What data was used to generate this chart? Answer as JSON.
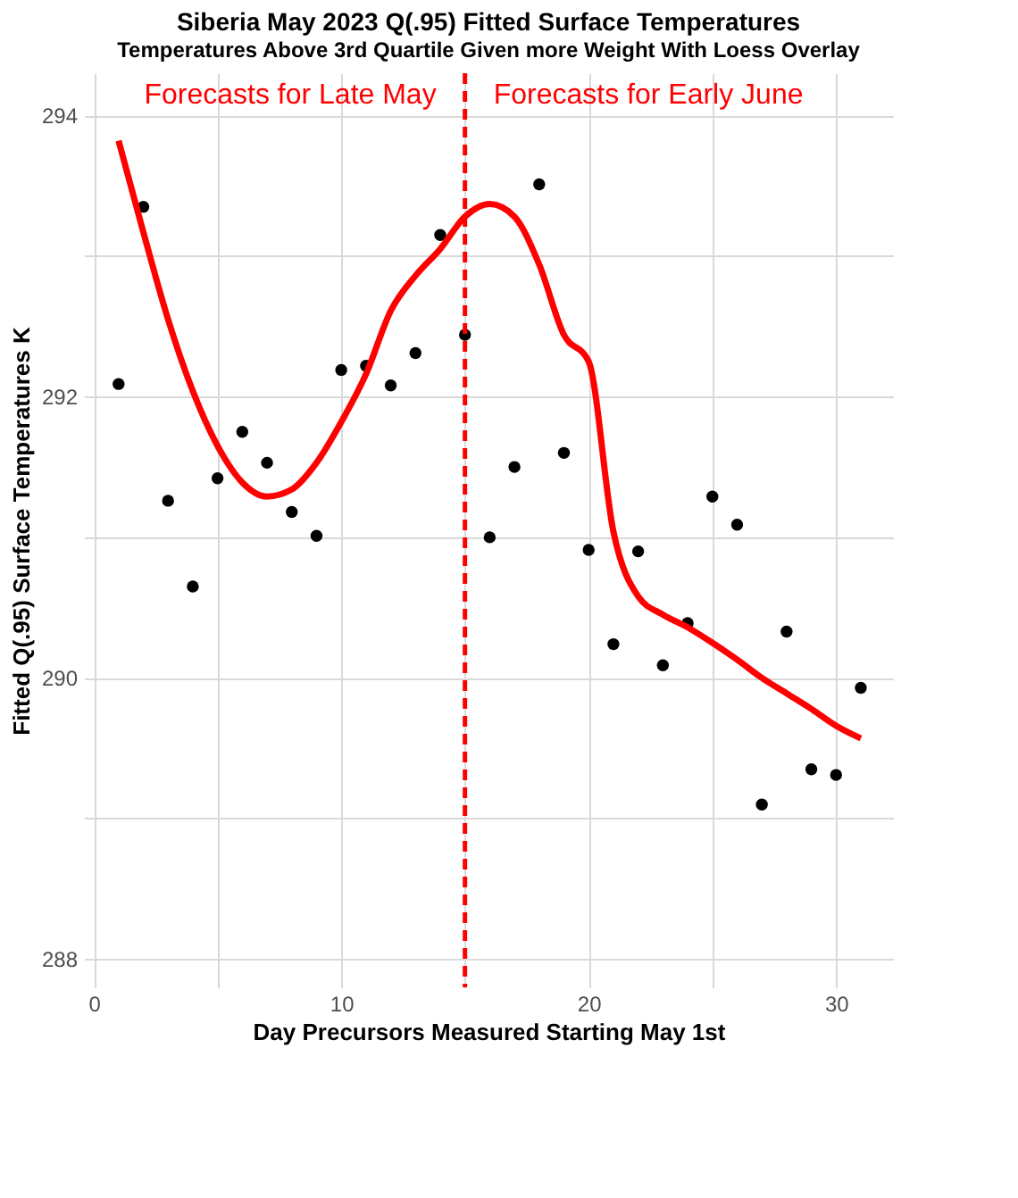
{
  "chart_data": {
    "type": "scatter",
    "title": "Siberia May 2023 Q(.95) Fitted Surface Temperatures",
    "subtitle": "Temperatures Above 3rd Quartile Given more Weight With Loess Overlay",
    "xlabel": "Day Precursors Measured Starting May 1st",
    "ylabel": "Fitted Q(.95) Surface Temperatures K",
    "x": [
      1,
      2,
      3,
      4,
      5,
      6,
      7,
      8,
      9,
      10,
      11,
      12,
      13,
      14,
      15,
      16,
      17,
      18,
      19,
      20,
      21,
      22,
      23,
      24,
      25,
      26,
      27,
      28,
      29,
      30,
      31
    ],
    "series": [
      {
        "color": "#000000",
        "marker": "circle",
        "values": [
          292.09,
          293.35,
          291.26,
          290.65,
          291.42,
          291.75,
          291.53,
          291.18,
          291.01,
          292.19,
          292.22,
          292.08,
          292.31,
          293.15,
          292.44,
          291.0,
          291.5,
          293.51,
          291.6,
          290.91,
          290.24,
          290.9,
          290.09,
          290.39,
          291.29,
          291.09,
          289.1,
          290.33,
          289.35,
          289.31,
          289.93
        ]
      },
      {
        "type": "line",
        "color": "#ff0000",
        "marker": "none",
        "line_style": "solid",
        "values": [
          293.82,
          293.17,
          292.55,
          292.04,
          291.65,
          291.39,
          291.29,
          291.34,
          291.53,
          291.82,
          292.16,
          292.61,
          292.86,
          293.05,
          293.28,
          293.37,
          293.28,
          292.94,
          292.44,
          292.25,
          291.04,
          290.58,
          290.45,
          290.36,
          290.25,
          290.13,
          290.0,
          289.89,
          289.78,
          289.66,
          289.57
        ]
      }
    ],
    "xlim": [
      -0.4,
      32.3
    ],
    "ylim": [
      287.8,
      294.3
    ],
    "xticks": [
      0,
      {
        "value": 5,
        "label": null
      },
      10,
      {
        "value": 15,
        "label": null
      },
      20,
      {
        "value": 25,
        "label": null
      },
      30
    ],
    "yticks": [
      288,
      {
        "value": 289,
        "label": null
      },
      290,
      {
        "value": 291,
        "label": null
      },
      292,
      {
        "value": 293,
        "label": null
      },
      294
    ],
    "grid": true,
    "ref_lines": [
      {
        "axis": "x",
        "value": 15,
        "color": "#ff0000",
        "line_style": "dashed"
      }
    ],
    "annotations": [
      "Forecasts for Late May",
      "Forecasts for Early June"
    ]
  }
}
